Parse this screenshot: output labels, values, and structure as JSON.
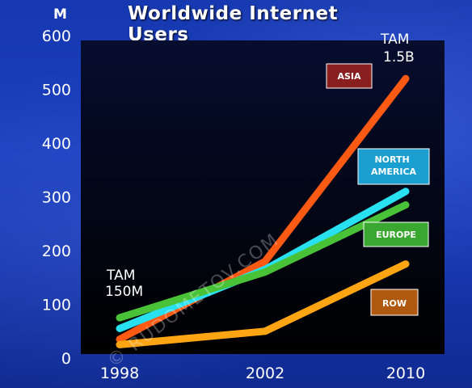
{
  "chart_data": {
    "type": "line",
    "title": "Worldwide Internet Users",
    "yunit": "M",
    "x": [
      1998,
      2002,
      2010
    ],
    "xticks": [
      "1998",
      "2002",
      "2010"
    ],
    "yticks": [
      "0",
      "100",
      "200",
      "300",
      "400",
      "500",
      "600"
    ],
    "ylim": [
      0,
      600
    ],
    "grid": false,
    "series": [
      {
        "name": "ASIA",
        "color": "#ff5a14",
        "values": [
          35,
          180,
          520
        ]
      },
      {
        "name": "NORTH AMERICA",
        "color": "#29e0f0",
        "values": [
          55,
          165,
          310
        ]
      },
      {
        "name": "EUROPE",
        "color": "#49c238",
        "values": [
          75,
          160,
          285
        ]
      },
      {
        "name": "ROW",
        "color": "#ffa514",
        "values": [
          25,
          50,
          175
        ]
      }
    ],
    "legend_boxes": [
      {
        "label": "ASIA",
        "color": "#8a1f1f"
      },
      {
        "label": "NORTH AMERICA",
        "color": "#1a9fd0"
      },
      {
        "label": "EUROPE",
        "color": "#3aa830"
      },
      {
        "label": "ROW",
        "color": "#b05a10"
      }
    ],
    "annotations": [
      {
        "line1": "TAM",
        "line2": "150M"
      },
      {
        "line1": "TAM",
        "line2": "1.5B"
      }
    ],
    "watermark": "© RUDOMETOV.COM"
  }
}
